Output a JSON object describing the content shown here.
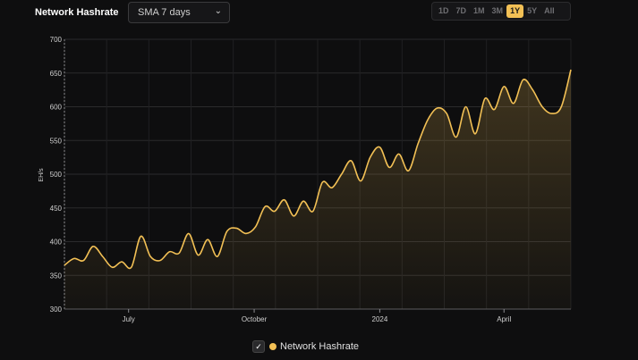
{
  "header": {
    "title": "Network Hashrate",
    "sma_select": {
      "value": "SMA 7 days"
    },
    "ranges": [
      {
        "label": "1D",
        "active": false
      },
      {
        "label": "7D",
        "active": false
      },
      {
        "label": "1M",
        "active": false
      },
      {
        "label": "3M",
        "active": false
      },
      {
        "label": "1Y",
        "active": true
      },
      {
        "label": "5Y",
        "active": false
      },
      {
        "label": "All",
        "active": false
      }
    ]
  },
  "legend": {
    "label": "Network Hashrate",
    "color": "#f2c055"
  },
  "chart_data": {
    "type": "area",
    "ylabel": "EH/s",
    "ylim": [
      300,
      700
    ],
    "yticks": [
      300,
      350,
      400,
      450,
      500,
      550,
      600,
      650,
      700
    ],
    "x_range": [
      "2023-05-15",
      "2024-05-20"
    ],
    "xticks": [
      {
        "label": "July",
        "date": "2023-07-01"
      },
      {
        "label": "October",
        "date": "2023-10-01"
      },
      {
        "label": "2024",
        "date": "2024-01-01"
      },
      {
        "label": "April",
        "date": "2024-04-01"
      }
    ],
    "grid": true,
    "series": [
      {
        "name": "Network Hashrate",
        "color": "#f2c055",
        "x": [
          "2023-05-15",
          "2023-05-22",
          "2023-05-29",
          "2023-06-05",
          "2023-06-12",
          "2023-06-19",
          "2023-06-26",
          "2023-07-03",
          "2023-07-10",
          "2023-07-17",
          "2023-07-24",
          "2023-07-31",
          "2023-08-07",
          "2023-08-14",
          "2023-08-21",
          "2023-08-28",
          "2023-09-04",
          "2023-09-11",
          "2023-09-18",
          "2023-09-25",
          "2023-10-02",
          "2023-10-09",
          "2023-10-16",
          "2023-10-23",
          "2023-10-30",
          "2023-11-06",
          "2023-11-13",
          "2023-11-20",
          "2023-11-27",
          "2023-12-04",
          "2023-12-11",
          "2023-12-18",
          "2023-12-25",
          "2024-01-01",
          "2024-01-08",
          "2024-01-15",
          "2024-01-22",
          "2024-01-29",
          "2024-02-05",
          "2024-02-12",
          "2024-02-19",
          "2024-02-26",
          "2024-03-04",
          "2024-03-11",
          "2024-03-18",
          "2024-03-25",
          "2024-04-01",
          "2024-04-08",
          "2024-04-15",
          "2024-04-22",
          "2024-04-29",
          "2024-05-06",
          "2024-05-13",
          "2024-05-20"
        ],
        "values": [
          365,
          375,
          372,
          393,
          378,
          362,
          370,
          362,
          408,
          378,
          372,
          385,
          383,
          412,
          380,
          403,
          378,
          415,
          420,
          412,
          422,
          452,
          445,
          462,
          438,
          460,
          445,
          488,
          480,
          500,
          520,
          490,
          525,
          540,
          510,
          530,
          505,
          545,
          580,
          598,
          590,
          555,
          600,
          560,
          612,
          596,
          630,
          605,
          640,
          625,
          600,
          590,
          600,
          655
        ]
      }
    ]
  }
}
